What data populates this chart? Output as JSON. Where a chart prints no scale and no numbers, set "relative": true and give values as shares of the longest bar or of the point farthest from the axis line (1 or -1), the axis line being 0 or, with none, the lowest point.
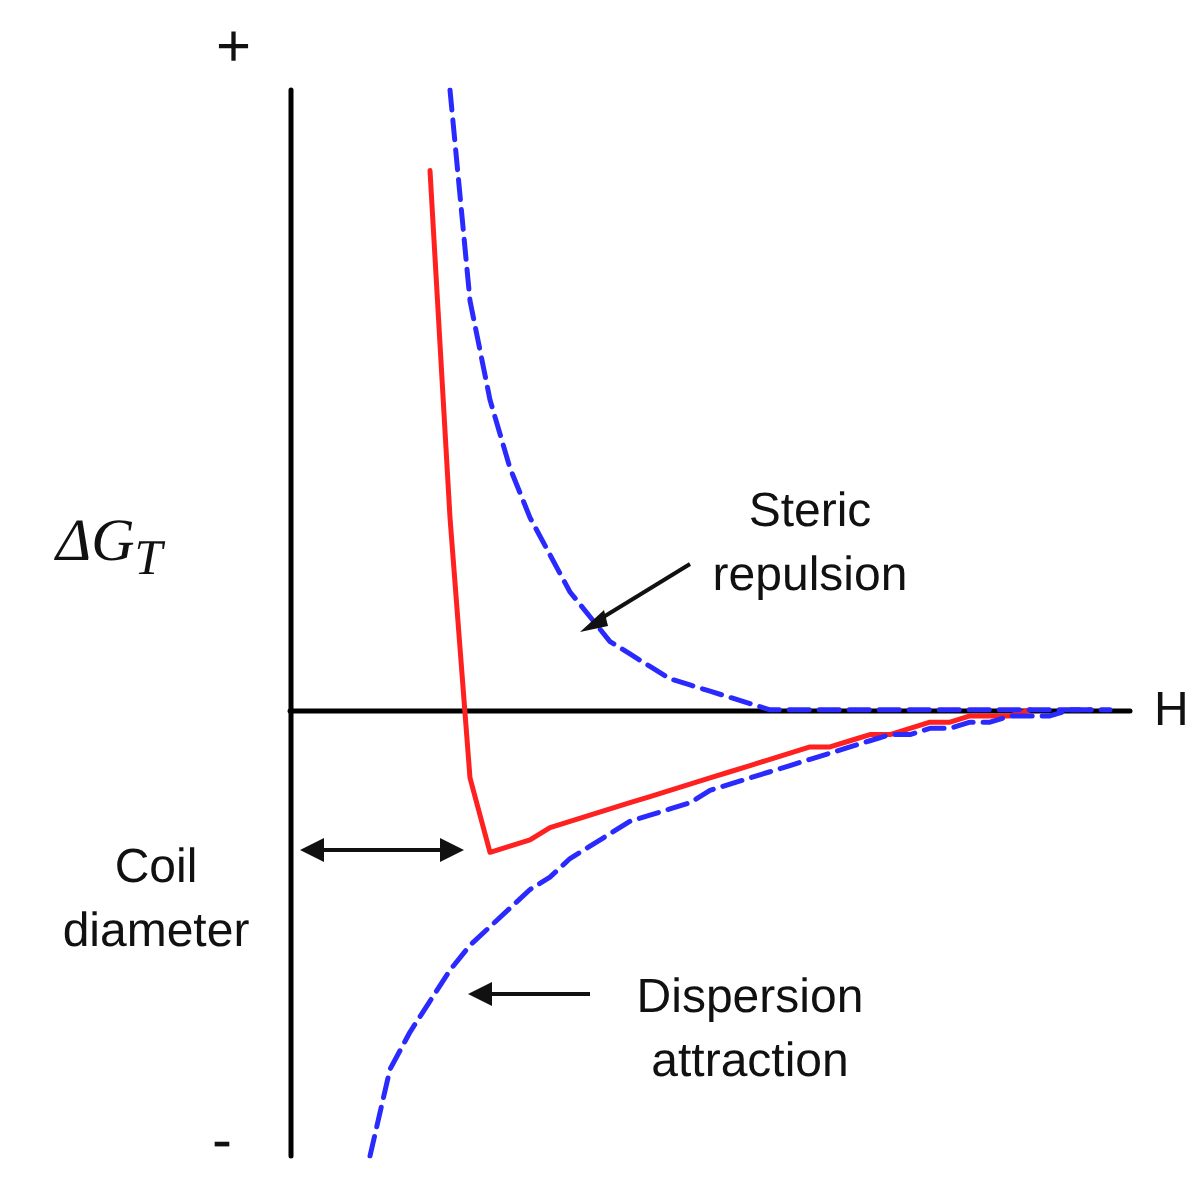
{
  "chart_data": {
    "type": "line",
    "relative": true,
    "ylabel": "ΔG$_{T}$",
    "xlabel": "H",
    "grid": false,
    "marker": "none",
    "categories": [
      null,
      null,
      null,
      null,
      null,
      null,
      null,
      null,
      null,
      null,
      null,
      null,
      null,
      null,
      null,
      null,
      null,
      null,
      null,
      null,
      null,
      null,
      null,
      null,
      null,
      null,
      null,
      null,
      null,
      null,
      null,
      null,
      null,
      null,
      null,
      null,
      null,
      null
    ],
    "series": [
      {
        "color": "#ff2020",
        "line_style": "solid",
        "values": [
          null,
          null,
          null,
          0.87,
          0.31,
          -0.11,
          -0.23,
          -0.22,
          -0.21,
          -0.19,
          -0.18,
          -0.17,
          -0.16,
          -0.15,
          -0.14,
          -0.13,
          -0.12,
          -0.11,
          -0.1,
          -0.09,
          -0.08,
          -0.07,
          -0.06,
          -0.06,
          -0.05,
          -0.04,
          -0.04,
          -0.03,
          -0.02,
          -0.02,
          -0.01,
          -0.01,
          -0.01,
          0,
          null,
          null,
          null,
          null
        ]
      },
      {
        "color": "#2a2aff",
        "line_style": "dashed",
        "values": [
          null,
          null,
          null,
          null,
          1,
          0.66,
          0.5,
          0.39,
          0.31,
          0.25,
          0.19,
          0.15,
          0.11,
          0.09,
          0.07,
          0.05,
          0.04,
          0.03,
          0.02,
          0.01,
          0,
          0,
          0,
          0,
          0,
          0,
          0,
          0,
          0,
          0,
          0,
          0,
          0,
          0,
          0,
          0,
          0,
          null
        ]
      },
      {
        "color": "#2a2aff",
        "line_style": "dashed",
        "values": [
          -0.72,
          -0.58,
          -0.52,
          -0.47,
          -0.42,
          -0.38,
          -0.35,
          -0.32,
          -0.29,
          -0.27,
          -0.24,
          -0.22,
          -0.2,
          -0.18,
          -0.17,
          -0.16,
          -0.15,
          -0.13,
          -0.12,
          -0.11,
          -0.1,
          -0.09,
          -0.08,
          -0.07,
          -0.06,
          -0.05,
          -0.04,
          -0.04,
          -0.03,
          -0.03,
          -0.02,
          -0.02,
          -0.01,
          -0.01,
          -0.01,
          0,
          0,
          0
        ]
      }
    ],
    "annotations": [
      "+",
      "-",
      "Steric repulsion",
      "Dispersion attraction",
      "Coil diameter"
    ]
  }
}
